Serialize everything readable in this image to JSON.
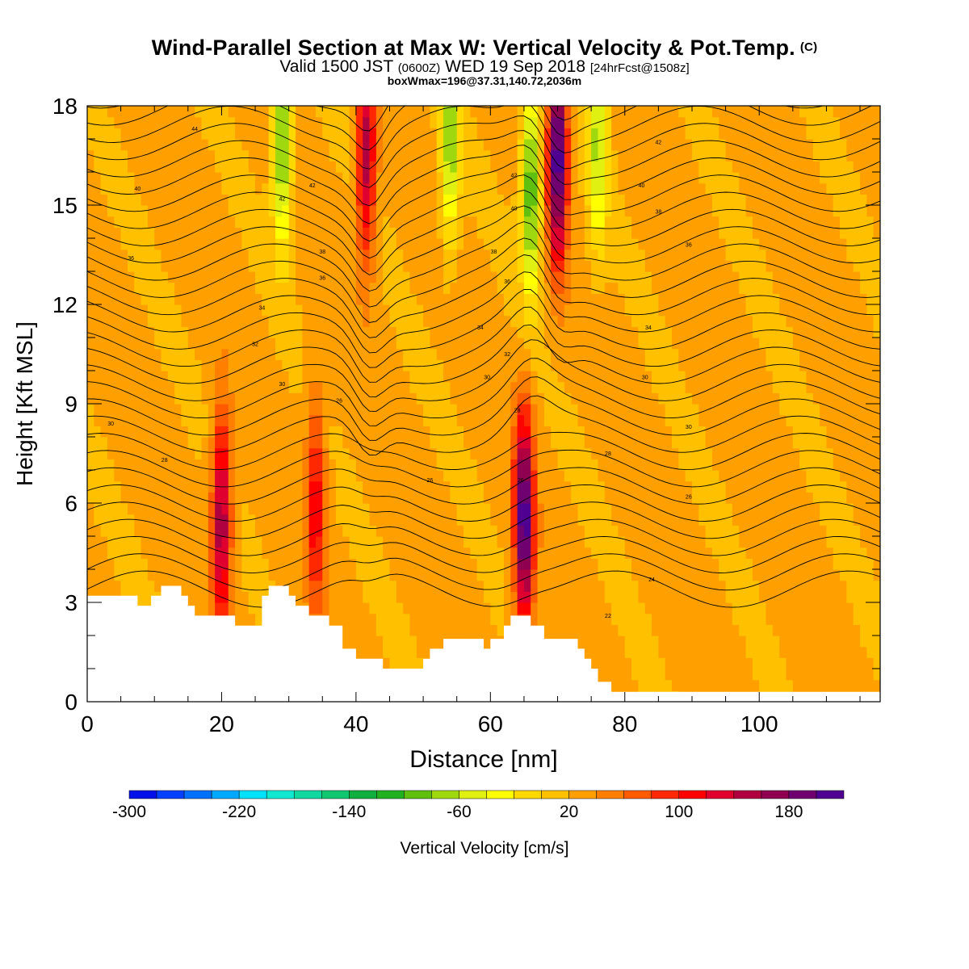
{
  "header": {
    "title": "Wind-Parallel Section at Max W: Vertical Velocity & Pot.Temp.",
    "title_mark": "(C)",
    "subtitle_part1": "Valid 1500 JST",
    "subtitle_part2": "(0600Z)",
    "subtitle_part3": "WED 19 Sep 2018",
    "subtitle_part4": "[24hrFcst@1508z]",
    "box_info": "boxWmax=196@37.31,140.72,2036m"
  },
  "chart_data": {
    "type": "heatmap",
    "title": "Wind-Parallel Section at Max W: Vertical Velocity & Pot.Temp.",
    "xlabel": "Distance [nm]",
    "ylabel": "Height [Kft MSL]",
    "xlim": [
      0,
      118
    ],
    "ylim": [
      0,
      18
    ],
    "x_ticks": [
      0,
      20,
      40,
      60,
      80,
      100
    ],
    "y_ticks": [
      0,
      3,
      6,
      9,
      12,
      15,
      18
    ],
    "colorbar": {
      "label": "Vertical Velocity [cm/s]",
      "min": -300,
      "max": 220,
      "step": 20,
      "tick_labels": [
        "-300",
        "-220",
        "-140",
        "-60",
        "20",
        "100",
        "180"
      ],
      "tick_values": [
        -300,
        -220,
        -140,
        -60,
        20,
        100,
        180
      ],
      "colors": [
        "#0010e8",
        "#0040ff",
        "#0070ff",
        "#00a8ff",
        "#00e0ff",
        "#10e8d0",
        "#10d8a0",
        "#10c870",
        "#10b040",
        "#20b020",
        "#60c010",
        "#a0d810",
        "#e0f010",
        "#ffff00",
        "#ffd800",
        "#ffc000",
        "#ffa000",
        "#ff8000",
        "#ff5a00",
        "#ff2800",
        "#ff0000",
        "#e00030",
        "#b00040",
        "#900050",
        "#700070",
        "#500090"
      ]
    },
    "terrain": [
      [
        0,
        3.2
      ],
      [
        7.5,
        3.2
      ],
      [
        7.5,
        2.9
      ],
      [
        9.5,
        2.9
      ],
      [
        9.5,
        3.2
      ],
      [
        11,
        3.2
      ],
      [
        11,
        3.5
      ],
      [
        14,
        3.5
      ],
      [
        14,
        3.2
      ],
      [
        15,
        3.2
      ],
      [
        15,
        2.9
      ],
      [
        16,
        2.9
      ],
      [
        16,
        2.6
      ],
      [
        22,
        2.6
      ],
      [
        22,
        2.3
      ],
      [
        26,
        2.3
      ],
      [
        26,
        3.2
      ],
      [
        27,
        3.2
      ],
      [
        27,
        3.5
      ],
      [
        30,
        3.5
      ],
      [
        30,
        3.2
      ],
      [
        31,
        3.2
      ],
      [
        31,
        2.9
      ],
      [
        33,
        2.9
      ],
      [
        33,
        2.6
      ],
      [
        36,
        2.6
      ],
      [
        36,
        2.3
      ],
      [
        38,
        2.3
      ],
      [
        38,
        1.6
      ],
      [
        40,
        1.6
      ],
      [
        40,
        1.3
      ],
      [
        44,
        1.3
      ],
      [
        44,
        1.0
      ],
      [
        50,
        1.0
      ],
      [
        50,
        1.3
      ],
      [
        51,
        1.3
      ],
      [
        51,
        1.6
      ],
      [
        53,
        1.6
      ],
      [
        53,
        1.9
      ],
      [
        59,
        1.9
      ],
      [
        59,
        1.6
      ],
      [
        60,
        1.6
      ],
      [
        60,
        1.9
      ],
      [
        62,
        1.9
      ],
      [
        62,
        2.3
      ],
      [
        63,
        2.3
      ],
      [
        63,
        2.6
      ],
      [
        66,
        2.6
      ],
      [
        66,
        2.3
      ],
      [
        68,
        2.3
      ],
      [
        68,
        1.9
      ],
      [
        73,
        1.9
      ],
      [
        73,
        1.6
      ],
      [
        74,
        1.6
      ],
      [
        74,
        1.3
      ],
      [
        75,
        1.3
      ],
      [
        75,
        1.0
      ],
      [
        76,
        1.0
      ],
      [
        76,
        0.6
      ],
      [
        78,
        0.6
      ],
      [
        78,
        0.3
      ],
      [
        118,
        0.3
      ]
    ],
    "w_features": [
      {
        "x": 20,
        "y": 5.5,
        "w": 140
      },
      {
        "x": 34,
        "y": 6.0,
        "w": 90
      },
      {
        "x": 41.5,
        "y": 16.5,
        "w": 130
      },
      {
        "x": 65,
        "y": 5.5,
        "w": 196
      },
      {
        "x": 70,
        "y": 16.5,
        "w": 200
      },
      {
        "x": 66,
        "y": 15.5,
        "w": -130
      },
      {
        "x": 29,
        "y": 17,
        "w": -120
      },
      {
        "x": 54,
        "y": 17,
        "w": -100
      },
      {
        "x": 76,
        "y": 17,
        "w": -90
      }
    ],
    "contour_labels": [
      {
        "x": 16,
        "y": 17.3,
        "text": "44"
      },
      {
        "x": 7.5,
        "y": 15.5,
        "text": "40"
      },
      {
        "x": 29,
        "y": 15.2,
        "text": "42"
      },
      {
        "x": 33.5,
        "y": 15.6,
        "text": "42"
      },
      {
        "x": 63.5,
        "y": 15.9,
        "text": "42"
      },
      {
        "x": 63.5,
        "y": 14.9,
        "text": "40"
      },
      {
        "x": 85,
        "y": 16.9,
        "text": "42"
      },
      {
        "x": 82.5,
        "y": 15.6,
        "text": "40"
      },
      {
        "x": 85,
        "y": 14.8,
        "text": "38"
      },
      {
        "x": 89.5,
        "y": 13.8,
        "text": "36"
      },
      {
        "x": 6.5,
        "y": 13.4,
        "text": "36"
      },
      {
        "x": 35,
        "y": 13.6,
        "text": "38"
      },
      {
        "x": 35,
        "y": 12.8,
        "text": "36"
      },
      {
        "x": 60.5,
        "y": 13.6,
        "text": "38"
      },
      {
        "x": 62.5,
        "y": 12.7,
        "text": "36"
      },
      {
        "x": 26,
        "y": 11.9,
        "text": "34"
      },
      {
        "x": 58.5,
        "y": 11.3,
        "text": "34"
      },
      {
        "x": 83.5,
        "y": 11.3,
        "text": "34"
      },
      {
        "x": 25,
        "y": 10.8,
        "text": "32"
      },
      {
        "x": 62.5,
        "y": 10.5,
        "text": "32"
      },
      {
        "x": 29,
        "y": 9.6,
        "text": "30"
      },
      {
        "x": 59.5,
        "y": 9.8,
        "text": "30"
      },
      {
        "x": 83,
        "y": 9.8,
        "text": "30"
      },
      {
        "x": 37.5,
        "y": 9.1,
        "text": "26"
      },
      {
        "x": 64,
        "y": 8.8,
        "text": "28"
      },
      {
        "x": 3.5,
        "y": 8.4,
        "text": "30"
      },
      {
        "x": 89.5,
        "y": 8.3,
        "text": "30"
      },
      {
        "x": 11.5,
        "y": 7.3,
        "text": "28"
      },
      {
        "x": 77.5,
        "y": 7.5,
        "text": "28"
      },
      {
        "x": 51,
        "y": 6.7,
        "text": "26"
      },
      {
        "x": 64.5,
        "y": 6.7,
        "text": "26"
      },
      {
        "x": 89.5,
        "y": 6.2,
        "text": "26"
      },
      {
        "x": 84,
        "y": 3.7,
        "text": "24"
      },
      {
        "x": 77.5,
        "y": 2.6,
        "text": "22"
      }
    ]
  }
}
